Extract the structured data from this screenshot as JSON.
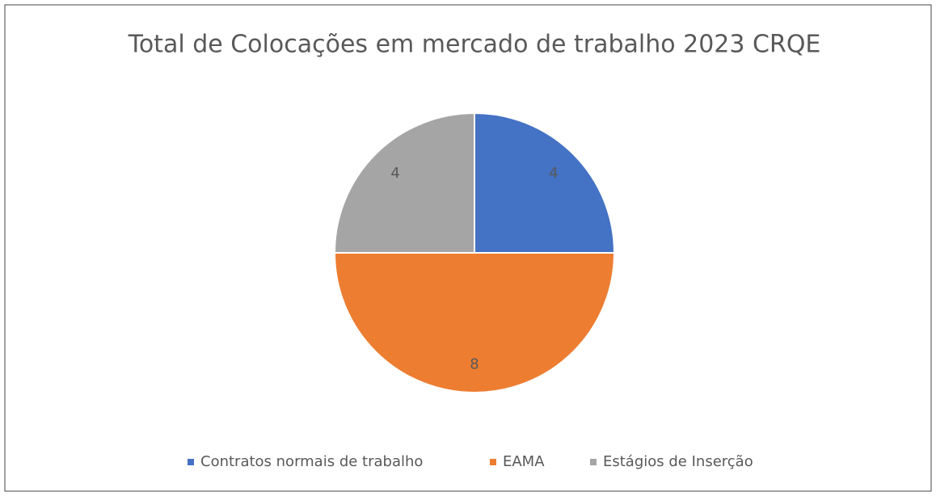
{
  "chart_data": {
    "type": "pie",
    "title": "Total de Colocações em mercado de trabalho 2023 CRQE",
    "categories": [
      "Contratos normais de trabalho",
      "EAMA",
      "Estágios de Inserção"
    ],
    "values": [
      4,
      8,
      4
    ],
    "colors": [
      "#4472c4",
      "#ed7d31",
      "#a5a5a5"
    ],
    "legend": "bottom"
  }
}
